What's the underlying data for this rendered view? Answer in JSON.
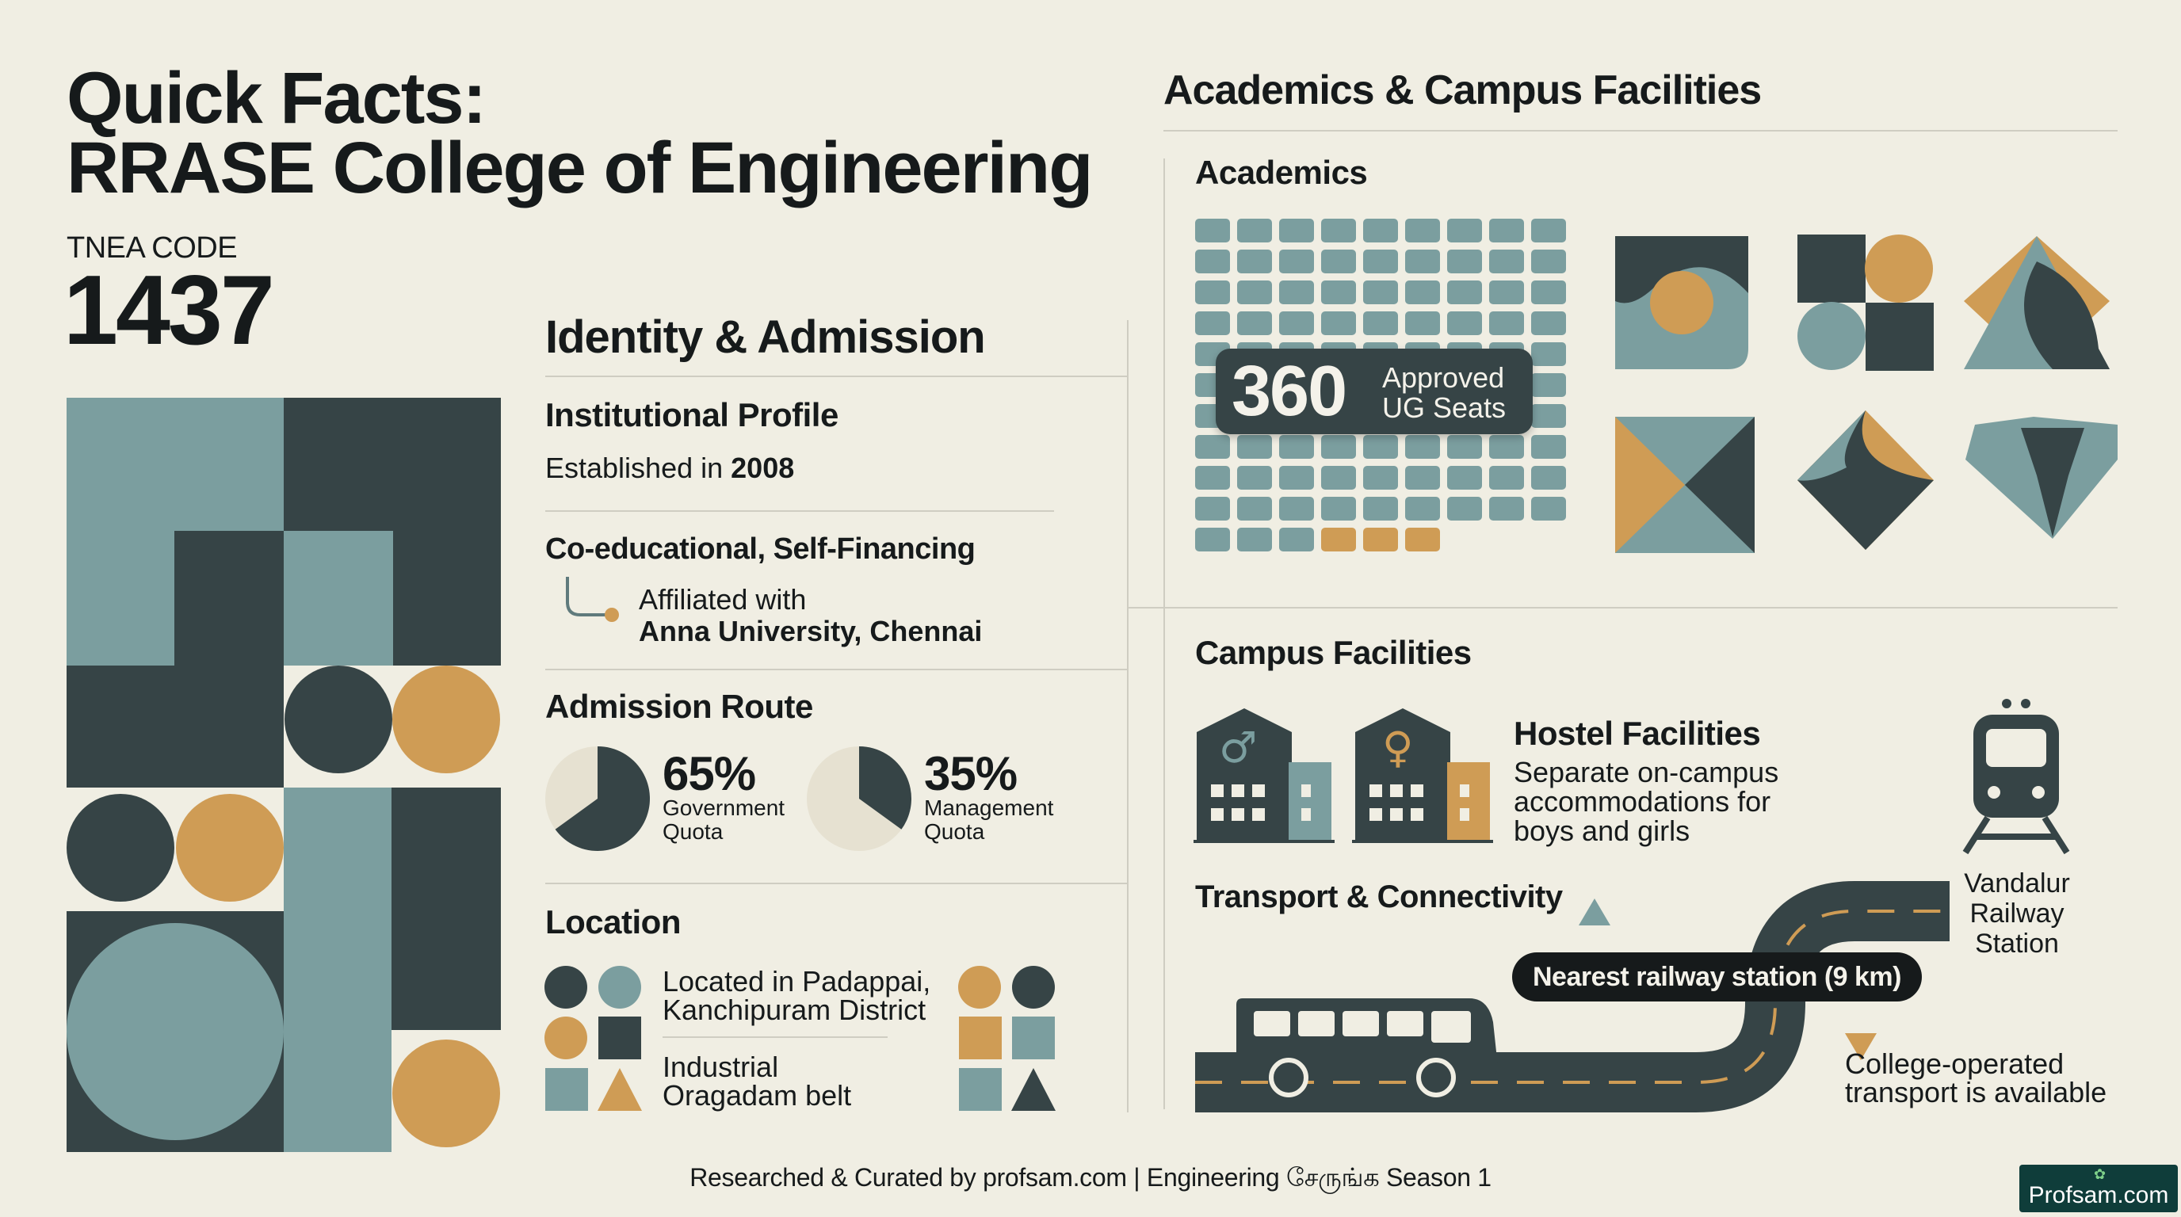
{
  "header": {
    "title_line1": "Quick Facts:",
    "title_line2": "RRASE College of Engineering",
    "code_label": "TNEA CODE",
    "code_value": "1437"
  },
  "identity": {
    "heading": "Identity & Admission",
    "profile_heading": "Institutional Profile",
    "established_prefix": "Established in",
    "established_year": "2008",
    "type": "Co-educational, Self-Financing",
    "affiliated_line1": "Affiliated with",
    "affiliated_line2": "Anna University, Chennai"
  },
  "admission": {
    "heading": "Admission Route",
    "quotas": [
      {
        "percent": "65%",
        "value": 65,
        "label_line1": "Government",
        "label_line2": "Quota"
      },
      {
        "percent": "35%",
        "value": 35,
        "label_line1": "Management",
        "label_line2": "Quota"
      }
    ]
  },
  "location": {
    "heading": "Location",
    "line1a": "Located in Padappai,",
    "line1b": "Kanchipuram District",
    "line2a": "Industrial",
    "line2b": "Oragadam belt"
  },
  "academics": {
    "section_title": "Academics & Campus Facilities",
    "heading": "Academics",
    "seats_number": "360",
    "seats_line1": "Approved",
    "seats_line2": "UG Seats"
  },
  "campus": {
    "heading": "Campus Facilities",
    "hostel_heading": "Hostel Facilities",
    "hostel_line1": "Separate on-campus",
    "hostel_line2": "accommodations for",
    "hostel_line3": "boys and girls",
    "male_symbol": "♂",
    "female_symbol": "♀"
  },
  "transport": {
    "heading": "Transport & Connectivity",
    "station_line1": "Vandalur",
    "station_line2": "Railway",
    "station_line3": "Station",
    "pill": "Nearest railway station (9 km)",
    "college_line1": "College-operated",
    "college_line2": "transport is available"
  },
  "footer": {
    "credit": "Researched & Curated by profsam.com | Engineering சேருங்க Season 1",
    "badge": "Profsam.com"
  },
  "colors": {
    "background": "#f0eee3",
    "teal": "#7b9e9f",
    "dark": "#364446",
    "ochre": "#cf9c55",
    "cream": "#e6e1d1"
  }
}
